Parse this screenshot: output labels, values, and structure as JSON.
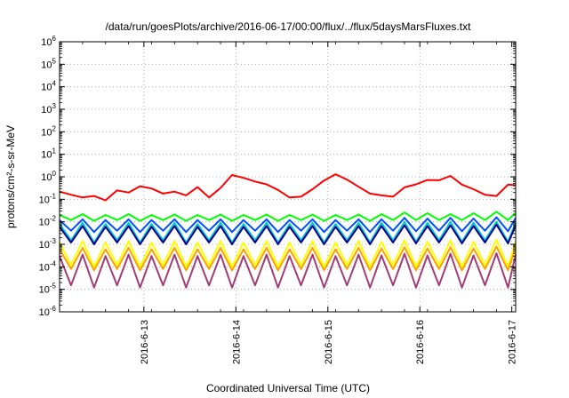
{
  "chart_data": {
    "type": "line",
    "title": "/data/run/goesPlots/archive/2016-06-17/00:00/flux/../flux/5daysMarsFluxes.txt",
    "xlabel": "Coordinated Universal Time (UTC)",
    "ylabel": "protons/cm²-s-sr-MeV",
    "yscale": "log",
    "ylim": [
      1e-06,
      1000000.0
    ],
    "xlim": [
      "2016-06-12 02:00",
      "2016-06-17 01:00"
    ],
    "x_ticks": [
      "2016-6-13",
      "2016-6-14",
      "2016-6-15",
      "2016-6-16",
      "2016-6-17"
    ],
    "y_ticks": [
      {
        "base": "10",
        "exp": "-6"
      },
      {
        "base": "10",
        "exp": "-5"
      },
      {
        "base": "10",
        "exp": "-4"
      },
      {
        "base": "10",
        "exp": "-3"
      },
      {
        "base": "10",
        "exp": "-2"
      },
      {
        "base": "10",
        "exp": "-1"
      },
      {
        "base": "10",
        "exp": "0"
      },
      {
        "base": "10",
        "exp": "1"
      },
      {
        "base": "10",
        "exp": "2"
      },
      {
        "base": "10",
        "exp": "3"
      },
      {
        "base": "10",
        "exp": "4"
      },
      {
        "base": "10",
        "exp": "5"
      },
      {
        "base": "10",
        "exp": "6"
      }
    ],
    "grid": true,
    "legend": "none",
    "series": [
      {
        "color": "#ff0000",
        "x": [
          "2016-06-12 02:00",
          "2016-06-12 05:00",
          "2016-06-12 08:00",
          "2016-06-12 11:00",
          "2016-06-12 14:00",
          "2016-06-12 17:00",
          "2016-06-12 20:00",
          "2016-06-12 23:00",
          "2016-06-13 02:00",
          "2016-06-13 05:00",
          "2016-06-13 08:00",
          "2016-06-13 11:00",
          "2016-06-13 14:00",
          "2016-06-13 17:00",
          "2016-06-13 20:00",
          "2016-06-13 23:00",
          "2016-06-14 02:00",
          "2016-06-14 05:00",
          "2016-06-14 08:00",
          "2016-06-14 11:00",
          "2016-06-14 14:00",
          "2016-06-14 17:00",
          "2016-06-14 20:00",
          "2016-06-14 23:00",
          "2016-06-15 02:00",
          "2016-06-15 05:00",
          "2016-06-15 08:00",
          "2016-06-15 11:00",
          "2016-06-15 14:00",
          "2016-06-15 17:00",
          "2016-06-15 20:00",
          "2016-06-15 23:00",
          "2016-06-16 02:00",
          "2016-06-16 05:00",
          "2016-06-16 08:00",
          "2016-06-16 11:00",
          "2016-06-16 14:00",
          "2016-06-16 17:00",
          "2016-06-16 20:00",
          "2016-06-16 23:00",
          "2016-06-17 01:00"
        ],
        "y": [
          0.22,
          0.16,
          0.12,
          0.14,
          0.09,
          0.25,
          0.2,
          0.38,
          0.3,
          0.18,
          0.22,
          0.15,
          0.35,
          0.12,
          0.32,
          1.2,
          0.9,
          0.62,
          0.46,
          0.26,
          0.12,
          0.13,
          0.28,
          0.68,
          1.3,
          0.75,
          0.36,
          0.18,
          0.15,
          0.13,
          0.34,
          0.46,
          0.72,
          0.7,
          1.1,
          0.45,
          0.28,
          0.16,
          0.14,
          0.45,
          0.42
        ]
      },
      {
        "color": "#00ff00",
        "x": [
          "2016-06-12 02:00",
          "2016-06-12 05:00",
          "2016-06-12 08:00",
          "2016-06-12 11:00",
          "2016-06-12 14:00",
          "2016-06-12 17:00",
          "2016-06-12 20:00",
          "2016-06-12 23:00",
          "2016-06-13 02:00",
          "2016-06-13 05:00",
          "2016-06-13 08:00",
          "2016-06-13 11:00",
          "2016-06-13 14:00",
          "2016-06-13 17:00",
          "2016-06-13 20:00",
          "2016-06-13 23:00",
          "2016-06-14 02:00",
          "2016-06-14 05:00",
          "2016-06-14 08:00",
          "2016-06-14 11:00",
          "2016-06-14 14:00",
          "2016-06-14 17:00",
          "2016-06-14 20:00",
          "2016-06-14 23:00",
          "2016-06-15 02:00",
          "2016-06-15 05:00",
          "2016-06-15 08:00",
          "2016-06-15 11:00",
          "2016-06-15 14:00",
          "2016-06-15 17:00",
          "2016-06-15 20:00",
          "2016-06-15 23:00",
          "2016-06-16 02:00",
          "2016-06-16 05:00",
          "2016-06-16 08:00",
          "2016-06-16 11:00",
          "2016-06-16 14:00",
          "2016-06-16 17:00",
          "2016-06-16 20:00",
          "2016-06-16 23:00",
          "2016-06-17 01:00"
        ],
        "y": [
          0.02,
          0.012,
          0.022,
          0.011,
          0.02,
          0.012,
          0.022,
          0.011,
          0.02,
          0.012,
          0.021,
          0.011,
          0.02,
          0.012,
          0.021,
          0.011,
          0.02,
          0.012,
          0.021,
          0.011,
          0.02,
          0.012,
          0.021,
          0.011,
          0.02,
          0.012,
          0.021,
          0.011,
          0.022,
          0.012,
          0.026,
          0.012,
          0.024,
          0.012,
          0.022,
          0.012,
          0.024,
          0.012,
          0.028,
          0.012,
          0.026
        ]
      },
      {
        "color": "#00c8c8",
        "x": [
          "2016-06-12 02:00",
          "2016-06-12 05:00",
          "2016-06-12 08:00",
          "2016-06-12 11:00",
          "2016-06-12 14:00",
          "2016-06-12 17:00",
          "2016-06-12 20:00",
          "2016-06-12 23:00",
          "2016-06-13 02:00",
          "2016-06-13 05:00",
          "2016-06-13 08:00",
          "2016-06-13 11:00",
          "2016-06-13 14:00",
          "2016-06-13 17:00",
          "2016-06-13 20:00",
          "2016-06-13 23:00",
          "2016-06-14 02:00",
          "2016-06-14 05:00",
          "2016-06-14 08:00",
          "2016-06-14 11:00",
          "2016-06-14 14:00",
          "2016-06-14 17:00",
          "2016-06-14 20:00",
          "2016-06-14 23:00",
          "2016-06-15 02:00",
          "2016-06-15 05:00",
          "2016-06-15 08:00",
          "2016-06-15 11:00",
          "2016-06-15 14:00",
          "2016-06-15 17:00",
          "2016-06-15 20:00",
          "2016-06-15 23:00",
          "2016-06-16 02:00",
          "2016-06-16 05:00",
          "2016-06-16 08:00",
          "2016-06-16 11:00",
          "2016-06-16 14:00",
          "2016-06-16 17:00",
          "2016-06-16 20:00",
          "2016-06-16 23:00",
          "2016-06-17 01:00"
        ],
        "y": [
          0.008,
          0.0015,
          0.009,
          0.0012,
          0.008,
          0.0015,
          0.009,
          0.0012,
          0.008,
          0.0015,
          0.009,
          0.0012,
          0.008,
          0.0015,
          0.009,
          0.0012,
          0.008,
          0.0015,
          0.009,
          0.0012,
          0.008,
          0.0015,
          0.009,
          0.0012,
          0.008,
          0.0015,
          0.009,
          0.0012,
          0.009,
          0.0015,
          0.01,
          0.0013,
          0.009,
          0.0015,
          0.01,
          0.0013,
          0.009,
          0.0015,
          0.01,
          0.0013,
          0.009
        ]
      },
      {
        "color": "#0050ff",
        "x": [
          "2016-06-12 02:00",
          "2016-06-12 05:00",
          "2016-06-12 08:00",
          "2016-06-12 11:00",
          "2016-06-12 14:00",
          "2016-06-12 17:00",
          "2016-06-12 20:00",
          "2016-06-12 23:00",
          "2016-06-13 02:00",
          "2016-06-13 05:00",
          "2016-06-13 08:00",
          "2016-06-13 11:00",
          "2016-06-13 14:00",
          "2016-06-13 17:00",
          "2016-06-13 20:00",
          "2016-06-13 23:00",
          "2016-06-14 02:00",
          "2016-06-14 05:00",
          "2016-06-14 08:00",
          "2016-06-14 11:00",
          "2016-06-14 14:00",
          "2016-06-14 17:00",
          "2016-06-14 20:00",
          "2016-06-14 23:00",
          "2016-06-15 02:00",
          "2016-06-15 05:00",
          "2016-06-15 08:00",
          "2016-06-15 11:00",
          "2016-06-15 14:00",
          "2016-06-15 17:00",
          "2016-06-15 20:00",
          "2016-06-15 23:00",
          "2016-06-16 02:00",
          "2016-06-16 05:00",
          "2016-06-16 08:00",
          "2016-06-16 11:00",
          "2016-06-16 14:00",
          "2016-06-16 17:00",
          "2016-06-16 20:00",
          "2016-06-16 23:00",
          "2016-06-17 01:00"
        ],
        "y": [
          0.012,
          0.004,
          0.013,
          0.0035,
          0.012,
          0.004,
          0.013,
          0.0035,
          0.012,
          0.004,
          0.013,
          0.0035,
          0.012,
          0.004,
          0.013,
          0.0035,
          0.012,
          0.004,
          0.013,
          0.0035,
          0.012,
          0.004,
          0.013,
          0.0035,
          0.012,
          0.004,
          0.013,
          0.0035,
          0.013,
          0.004,
          0.015,
          0.0038,
          0.014,
          0.004,
          0.015,
          0.0038,
          0.014,
          0.004,
          0.016,
          0.0038,
          0.015
        ]
      },
      {
        "color": "#000090",
        "x": [
          "2016-06-12 02:00",
          "2016-06-12 05:00",
          "2016-06-12 08:00",
          "2016-06-12 11:00",
          "2016-06-12 14:00",
          "2016-06-12 17:00",
          "2016-06-12 20:00",
          "2016-06-12 23:00",
          "2016-06-13 02:00",
          "2016-06-13 05:00",
          "2016-06-13 08:00",
          "2016-06-13 11:00",
          "2016-06-13 14:00",
          "2016-06-13 17:00",
          "2016-06-13 20:00",
          "2016-06-13 23:00",
          "2016-06-14 02:00",
          "2016-06-14 05:00",
          "2016-06-14 08:00",
          "2016-06-14 11:00",
          "2016-06-14 14:00",
          "2016-06-14 17:00",
          "2016-06-14 20:00",
          "2016-06-14 23:00",
          "2016-06-15 02:00",
          "2016-06-15 05:00",
          "2016-06-15 08:00",
          "2016-06-15 11:00",
          "2016-06-15 14:00",
          "2016-06-15 17:00",
          "2016-06-15 20:00",
          "2016-06-15 23:00",
          "2016-06-16 02:00",
          "2016-06-16 05:00",
          "2016-06-16 08:00",
          "2016-06-16 11:00",
          "2016-06-16 14:00",
          "2016-06-16 17:00",
          "2016-06-16 20:00",
          "2016-06-16 23:00",
          "2016-06-17 01:00"
        ],
        "y": [
          0.006,
          0.0012,
          0.0065,
          0.001,
          0.006,
          0.0012,
          0.0065,
          0.001,
          0.006,
          0.0012,
          0.0065,
          0.001,
          0.006,
          0.0012,
          0.0065,
          0.001,
          0.006,
          0.0012,
          0.0065,
          0.001,
          0.006,
          0.0012,
          0.0065,
          0.001,
          0.006,
          0.0012,
          0.0065,
          0.001,
          0.0065,
          0.0012,
          0.007,
          0.0011,
          0.0065,
          0.0012,
          0.007,
          0.0011,
          0.0065,
          0.0012,
          0.0075,
          0.0011,
          0.007
        ]
      },
      {
        "color": "#ffff00",
        "x": [
          "2016-06-12 02:00",
          "2016-06-12 05:00",
          "2016-06-12 08:00",
          "2016-06-12 11:00",
          "2016-06-12 14:00",
          "2016-06-12 17:00",
          "2016-06-12 20:00",
          "2016-06-12 23:00",
          "2016-06-13 02:00",
          "2016-06-13 05:00",
          "2016-06-13 08:00",
          "2016-06-13 11:00",
          "2016-06-13 14:00",
          "2016-06-13 17:00",
          "2016-06-13 20:00",
          "2016-06-13 23:00",
          "2016-06-14 02:00",
          "2016-06-14 05:00",
          "2016-06-14 08:00",
          "2016-06-14 11:00",
          "2016-06-14 14:00",
          "2016-06-14 17:00",
          "2016-06-14 20:00",
          "2016-06-14 23:00",
          "2016-06-15 02:00",
          "2016-06-15 05:00",
          "2016-06-15 08:00",
          "2016-06-15 11:00",
          "2016-06-15 14:00",
          "2016-06-15 17:00",
          "2016-06-15 20:00",
          "2016-06-15 23:00",
          "2016-06-16 02:00",
          "2016-06-16 05:00",
          "2016-06-16 08:00",
          "2016-06-16 11:00",
          "2016-06-16 14:00",
          "2016-06-16 17:00",
          "2016-06-16 20:00",
          "2016-06-16 23:00",
          "2016-06-17 01:00"
        ],
        "y": [
          0.0012,
          0.00012,
          0.0014,
          0.0001,
          0.0012,
          0.00012,
          0.0014,
          0.0001,
          0.0012,
          0.00012,
          0.0014,
          0.0001,
          0.0012,
          0.00012,
          0.0014,
          0.0001,
          0.0012,
          0.00012,
          0.0014,
          0.0001,
          0.0012,
          0.00012,
          0.0014,
          0.0001,
          0.0012,
          0.00012,
          0.0014,
          0.0001,
          0.0013,
          0.00012,
          0.0015,
          0.0001,
          0.0013,
          0.00012,
          0.0015,
          0.0001,
          0.0013,
          0.00012,
          0.0016,
          0.0001,
          0.0014
        ]
      },
      {
        "color": "#ffa000",
        "x": [
          "2016-06-12 02:00",
          "2016-06-12 05:00",
          "2016-06-12 08:00",
          "2016-06-12 11:00",
          "2016-06-12 14:00",
          "2016-06-12 17:00",
          "2016-06-12 20:00",
          "2016-06-12 23:00",
          "2016-06-13 02:00",
          "2016-06-13 05:00",
          "2016-06-13 08:00",
          "2016-06-13 11:00",
          "2016-06-13 14:00",
          "2016-06-13 17:00",
          "2016-06-13 20:00",
          "2016-06-13 23:00",
          "2016-06-14 02:00",
          "2016-06-14 05:00",
          "2016-06-14 08:00",
          "2016-06-14 11:00",
          "2016-06-14 14:00",
          "2016-06-14 17:00",
          "2016-06-14 20:00",
          "2016-06-14 23:00",
          "2016-06-15 02:00",
          "2016-06-15 05:00",
          "2016-06-15 08:00",
          "2016-06-15 11:00",
          "2016-06-15 14:00",
          "2016-06-15 17:00",
          "2016-06-15 20:00",
          "2016-06-15 23:00",
          "2016-06-16 02:00",
          "2016-06-16 05:00",
          "2016-06-16 08:00",
          "2016-06-16 11:00",
          "2016-06-16 14:00",
          "2016-06-16 17:00",
          "2016-06-16 20:00",
          "2016-06-16 23:00",
          "2016-06-17 01:00"
        ],
        "y": [
          0.0006,
          8e-05,
          0.0007,
          7e-05,
          0.0006,
          8e-05,
          0.0007,
          7e-05,
          0.0006,
          8e-05,
          0.0007,
          7e-05,
          0.0006,
          8e-05,
          0.0007,
          7e-05,
          0.0006,
          8e-05,
          0.0007,
          7e-05,
          0.0006,
          8e-05,
          0.0007,
          7e-05,
          0.0006,
          8e-05,
          0.0007,
          7e-05,
          0.00065,
          8e-05,
          0.00075,
          7e-05,
          0.00065,
          8e-05,
          0.00075,
          7e-05,
          0.00065,
          8e-05,
          0.0008,
          7e-05,
          0.0007
        ]
      },
      {
        "color": "#a03c78",
        "x": [
          "2016-06-12 02:00",
          "2016-06-12 05:00",
          "2016-06-12 08:00",
          "2016-06-12 11:00",
          "2016-06-12 14:00",
          "2016-06-12 17:00",
          "2016-06-12 20:00",
          "2016-06-12 23:00",
          "2016-06-13 02:00",
          "2016-06-13 05:00",
          "2016-06-13 08:00",
          "2016-06-13 11:00",
          "2016-06-13 14:00",
          "2016-06-13 17:00",
          "2016-06-13 20:00",
          "2016-06-13 23:00",
          "2016-06-14 02:00",
          "2016-06-14 05:00",
          "2016-06-14 08:00",
          "2016-06-14 11:00",
          "2016-06-14 14:00",
          "2016-06-14 17:00",
          "2016-06-14 20:00",
          "2016-06-14 23:00",
          "2016-06-15 02:00",
          "2016-06-15 05:00",
          "2016-06-15 08:00",
          "2016-06-15 11:00",
          "2016-06-15 14:00",
          "2016-06-15 17:00",
          "2016-06-15 20:00",
          "2016-06-15 23:00",
          "2016-06-16 02:00",
          "2016-06-16 05:00",
          "2016-06-16 08:00",
          "2016-06-16 11:00",
          "2016-06-16 14:00",
          "2016-06-16 17:00",
          "2016-06-16 20:00",
          "2016-06-16 23:00",
          "2016-06-17 01:00"
        ],
        "y": [
          0.0003,
          1.5e-05,
          0.00035,
          1.2e-05,
          0.0003,
          1.5e-05,
          0.00035,
          1.2e-05,
          0.0003,
          1.5e-05,
          0.00035,
          1.2e-05,
          0.0003,
          1.5e-05,
          0.00035,
          1.2e-05,
          0.0003,
          1.5e-05,
          0.00035,
          1.2e-05,
          0.0003,
          1.5e-05,
          0.00035,
          1.2e-05,
          0.0003,
          1.5e-05,
          0.00035,
          1.2e-05,
          0.00032,
          1.5e-05,
          0.00038,
          1.2e-05,
          0.00032,
          1.5e-05,
          0.00038,
          1.2e-05,
          0.00032,
          1.5e-05,
          0.0004,
          1.2e-05,
          0.00035
        ]
      }
    ]
  }
}
